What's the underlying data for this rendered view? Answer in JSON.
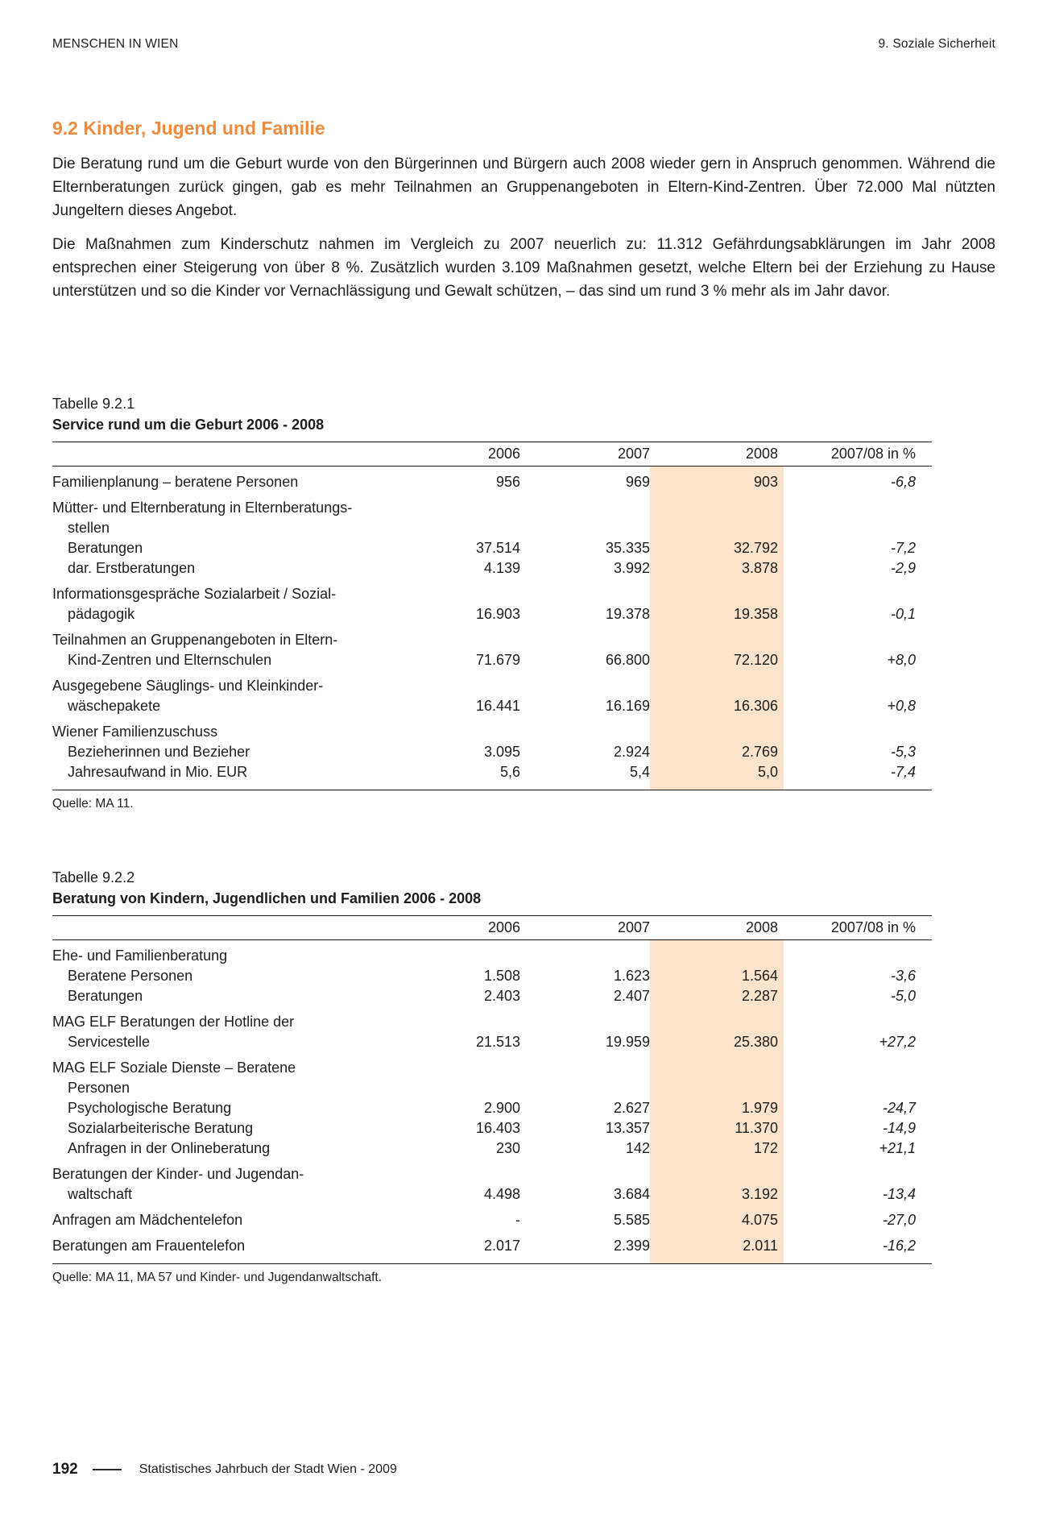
{
  "header": {
    "left": "MENSCHEN IN WIEN",
    "right": "9. Soziale Sicherheit"
  },
  "section": {
    "title": "9.2 Kinder, Jugend und Familie",
    "paragraph1": "Die Beratung rund um die Geburt wurde von den Bürgerinnen und Bürgern auch 2008 wieder gern in Anspruch genommen. Während die Elternberatungen zurück gingen, gab es mehr Teilnahmen an Gruppenangeboten in Eltern-Kind-Zentren. Über 72.000 Mal nützten Jungeltern dieses Angebot.",
    "paragraph2": "Die Maßnahmen zum Kinderschutz nahmen im Vergleich zu 2007 neuerlich zu: 11.312 Gefährdungsabklärungen im Jahr 2008 entsprechen einer Steigerung von über 8 %. Zusätzlich wurden 3.109 Maßnahmen gesetzt, welche Eltern bei der Erziehung zu Hause unterstützen und so die Kinder vor Vernachlässigung und Gewalt schützen, – das sind um rund 3 % mehr als im Jahr davor."
  },
  "colors": {
    "accent_orange": "#EF8A3E",
    "highlight_2008_column": "#FBE3CC"
  },
  "table1": {
    "caption": "Tabelle 9.2.1",
    "title": "Service rund um die Geburt 2006 - 2008",
    "col_headers": [
      "2006",
      "2007",
      "2008",
      "2007/08 in %"
    ],
    "rows": [
      {
        "gap": false,
        "lines": [
          {
            "t": "Familienplanung – beratene Personen",
            "i": 0
          }
        ],
        "values": [
          "956",
          "969",
          "903",
          "-6,8"
        ]
      },
      {
        "gap": true,
        "lines": [
          {
            "t": "Mütter- und Elternberatung in Elternberatungs-",
            "i": 0
          },
          {
            "t": "stellen",
            "i": 1
          }
        ],
        "values": null
      },
      {
        "gap": false,
        "lines": [
          {
            "t": "Beratungen",
            "i": 1
          }
        ],
        "values": [
          "37.514",
          "35.335",
          "32.792",
          "-7,2"
        ]
      },
      {
        "gap": false,
        "lines": [
          {
            "t": "dar. Erstberatungen",
            "i": 1
          }
        ],
        "values": [
          "4.139",
          "3.992",
          "3.878",
          "-2,9"
        ]
      },
      {
        "gap": true,
        "lines": [
          {
            "t": "Informationsgespräche Sozialarbeit / Sozial-",
            "i": 0
          },
          {
            "t": "pädagogik",
            "i": 1
          }
        ],
        "values": [
          "16.903",
          "19.378",
          "19.358",
          "-0,1"
        ]
      },
      {
        "gap": true,
        "lines": [
          {
            "t": "Teilnahmen an Gruppenangeboten in Eltern-",
            "i": 0
          },
          {
            "t": "Kind-Zentren und Elternschulen",
            "i": 1
          }
        ],
        "values": [
          "71.679",
          "66.800",
          "72.120",
          "+8,0"
        ]
      },
      {
        "gap": true,
        "lines": [
          {
            "t": "Ausgegebene Säuglings- und Kleinkinder-",
            "i": 0
          },
          {
            "t": "wäschepakete",
            "i": 1
          }
        ],
        "values": [
          "16.441",
          "16.169",
          "16.306",
          "+0,8"
        ]
      },
      {
        "gap": true,
        "lines": [
          {
            "t": "Wiener Familienzuschuss",
            "i": 0
          }
        ],
        "values": null
      },
      {
        "gap": false,
        "lines": [
          {
            "t": "Bezieherinnen und Bezieher",
            "i": 1
          }
        ],
        "values": [
          "3.095",
          "2.924",
          "2.769",
          "-5,3"
        ]
      },
      {
        "gap": false,
        "lines": [
          {
            "t": "Jahresaufwand in Mio. EUR",
            "i": 1
          }
        ],
        "values": [
          "5,6",
          "5,4",
          "5,0",
          "-7,4"
        ]
      }
    ],
    "source": "Quelle: MA 11."
  },
  "table2": {
    "caption": "Tabelle 9.2.2",
    "title": "Beratung von Kindern, Jugendlichen und Familien 2006 - 2008",
    "col_headers": [
      "2006",
      "2007",
      "2008",
      "2007/08 in %"
    ],
    "rows": [
      {
        "gap": false,
        "lines": [
          {
            "t": "Ehe- und Familienberatung",
            "i": 0
          }
        ],
        "values": null
      },
      {
        "gap": false,
        "lines": [
          {
            "t": "Beratene Personen",
            "i": 1
          }
        ],
        "values": [
          "1.508",
          "1.623",
          "1.564",
          "-3,6"
        ]
      },
      {
        "gap": false,
        "lines": [
          {
            "t": "Beratungen",
            "i": 1
          }
        ],
        "values": [
          "2.403",
          "2.407",
          "2.287",
          "-5,0"
        ]
      },
      {
        "gap": true,
        "lines": [
          {
            "t": "MAG ELF Beratungen der Hotline der",
            "i": 0
          },
          {
            "t": "Servicestelle",
            "i": 1
          }
        ],
        "values": [
          "21.513",
          "19.959",
          "25.380",
          "+27,2"
        ]
      },
      {
        "gap": true,
        "lines": [
          {
            "t": "MAG ELF Soziale Dienste – Beratene",
            "i": 0
          },
          {
            "t": "Personen",
            "i": 1
          }
        ],
        "values": null
      },
      {
        "gap": false,
        "lines": [
          {
            "t": "Psychologische Beratung",
            "i": 1
          }
        ],
        "values": [
          "2.900",
          "2.627",
          "1.979",
          "-24,7"
        ]
      },
      {
        "gap": false,
        "lines": [
          {
            "t": "Sozialarbeiterische Beratung",
            "i": 1
          }
        ],
        "values": [
          "16.403",
          "13.357",
          "11.370",
          "-14,9"
        ]
      },
      {
        "gap": false,
        "lines": [
          {
            "t": "Anfragen in der Onlineberatung",
            "i": 1
          }
        ],
        "values": [
          "230",
          "142",
          "172",
          "+21,1"
        ]
      },
      {
        "gap": true,
        "lines": [
          {
            "t": "Beratungen der Kinder- und Jugendan-",
            "i": 0
          },
          {
            "t": "waltschaft",
            "i": 1
          }
        ],
        "values": [
          "4.498",
          "3.684",
          "3.192",
          "-13,4"
        ]
      },
      {
        "gap": true,
        "lines": [
          {
            "t": "Anfragen am Mädchentelefon",
            "i": 0
          }
        ],
        "values": [
          "-",
          "5.585",
          "4.075",
          "-27,0"
        ]
      },
      {
        "gap": true,
        "lines": [
          {
            "t": "Beratungen am Frauentelefon",
            "i": 0
          }
        ],
        "values": [
          "2.017",
          "2.399",
          "2.011",
          "-16,2"
        ]
      }
    ],
    "source": "Quelle: MA 11, MA 57 und Kinder- und Jugendanwaltschaft."
  },
  "footer": {
    "page_number": "192",
    "text": "Statistisches Jahrbuch der Stadt Wien - 2009"
  }
}
